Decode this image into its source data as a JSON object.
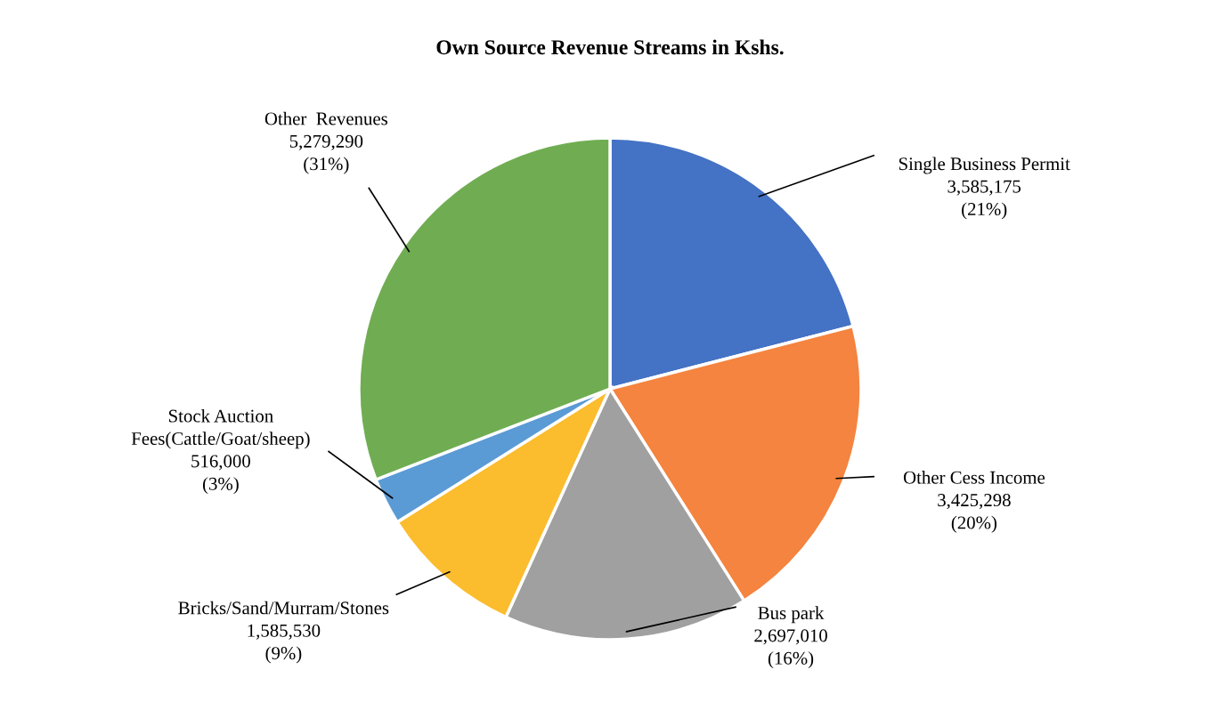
{
  "chart_data": {
    "type": "pie",
    "title": "Own Source Revenue Streams in Kshs.",
    "categories": [
      "Single Business Permit",
      "Other Cess Income",
      "Bus park",
      "Bricks/Sand/Murram/Stones",
      "Stock Auction\nFees(Cattle/Goat/sheep)",
      "Other  Revenues"
    ],
    "values": [
      3585175,
      3425298,
      2697010,
      1585530,
      516000,
      5279290
    ],
    "colors": [
      "#4472c4",
      "#f4843f",
      "#a0a0a0",
      "#fbbc2e",
      "#5b9bd5",
      "#70ad52"
    ],
    "value_labels": [
      "3,585,175\n(21%)",
      "3,425,298\n(20%)",
      "2,697,010\n(16%)",
      "1,585,530\n(9%)",
      "516,000\n(3%)",
      "5,279,290\n(31%)"
    ],
    "legend": false
  }
}
